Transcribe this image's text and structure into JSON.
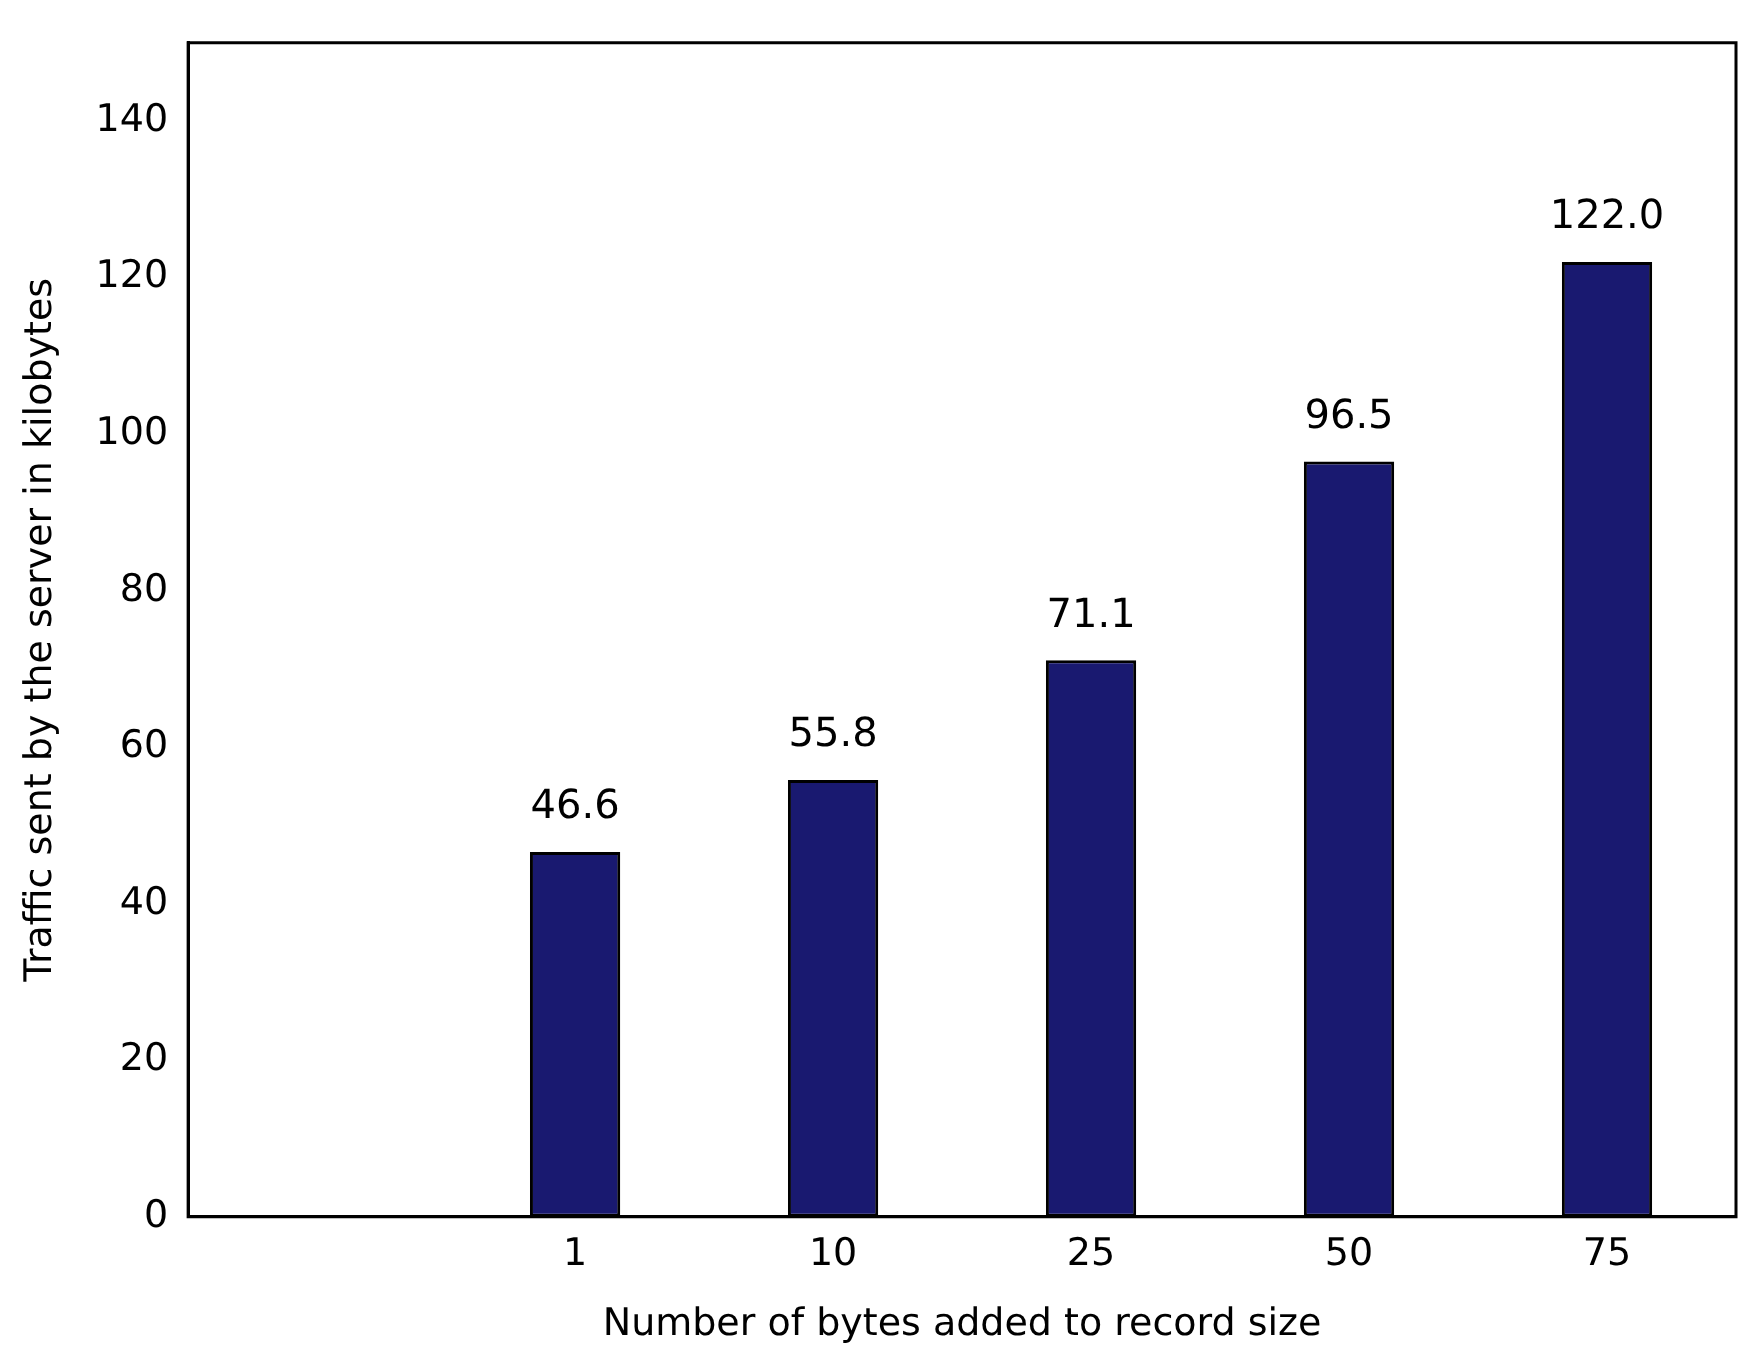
{
  "chart_data": {
    "type": "bar",
    "xlabel": "Number of bytes added to record size",
    "ylabel": "Traffic sent by the server in kilobytes",
    "categories": [
      null,
      "1",
      "10",
      "25",
      "50",
      "75"
    ],
    "values": [
      null,
      46.6,
      55.8,
      71.1,
      96.5,
      122.0
    ],
    "value_labels": [
      null,
      "46.6",
      "55.8",
      "71.1",
      "96.5",
      "122.0"
    ],
    "color": "#191970",
    "ylim": [
      0,
      150
    ],
    "yticks": [
      0,
      20,
      40,
      60,
      80,
      100,
      120,
      140
    ],
    "grid": false,
    "legend": false
  }
}
